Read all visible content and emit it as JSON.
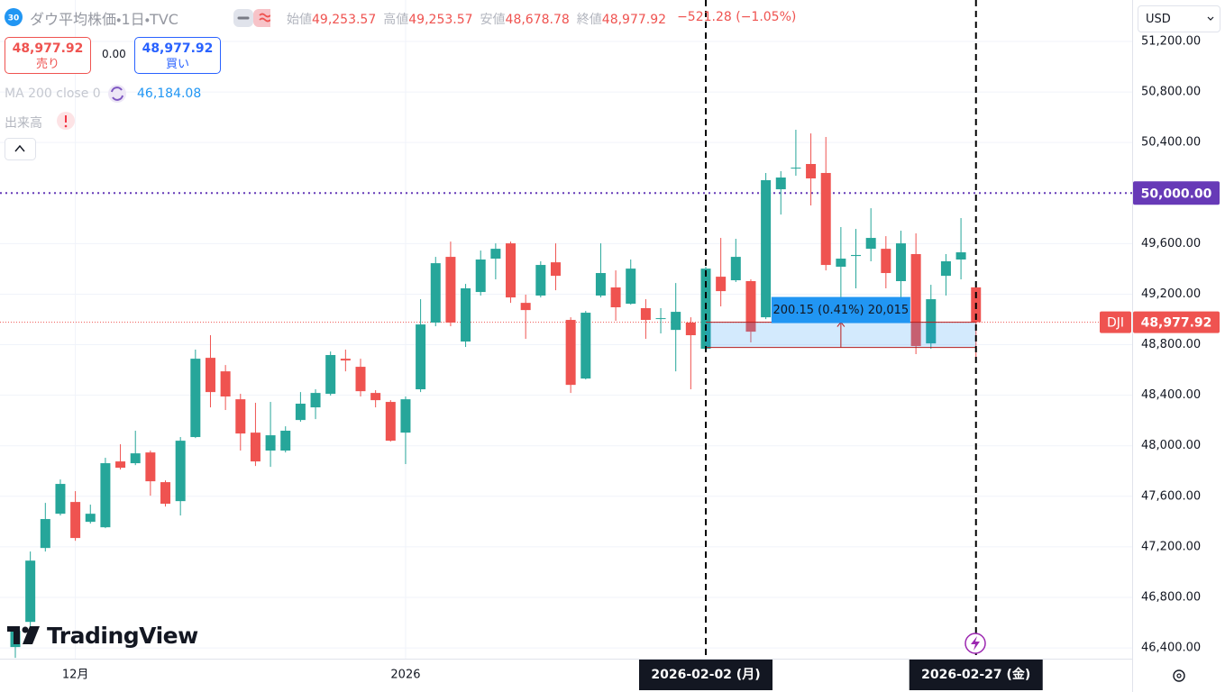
{
  "header": {
    "badge": "30",
    "title": "ダウ平均株価・1日・TVC",
    "ohlc": [
      {
        "label": "始値",
        "value": "49,253.57"
      },
      {
        "label": "高値",
        "value": "49,253.57"
      },
      {
        "label": "安値",
        "value": "48,678.78"
      },
      {
        "label": "終値",
        "value": "48,977.92"
      }
    ],
    "change": "−521.28 (−1.05%)",
    "sell": {
      "price": "48,977.92",
      "label": "売り"
    },
    "spread": "0.00",
    "buy": {
      "price": "48,977.92",
      "label": "買い"
    },
    "indicators": [
      {
        "name": "MA 200 close 0",
        "value": "46,184.08"
      },
      {
        "name": "出来高"
      }
    ],
    "currency": "USD",
    "logo": "TradingView"
  },
  "chart_data": {
    "type": "candlestick",
    "series_name": "DJI",
    "categories": [
      null,
      null,
      null,
      null,
      "12月",
      null,
      null,
      null,
      null,
      null,
      null,
      null,
      null,
      null,
      null,
      null,
      null,
      null,
      null,
      null,
      null,
      null,
      null,
      null,
      null,
      null,
      "2026",
      null,
      null,
      null,
      null,
      null,
      null,
      null,
      null,
      null,
      null,
      null,
      null,
      null,
      null,
      null,
      null,
      null,
      null,
      null,
      "2026-02-02 (月)",
      null,
      null,
      null,
      null,
      null,
      null,
      null,
      null,
      null,
      null,
      null,
      null,
      null,
      null,
      null,
      null,
      null,
      "2026-02-27 (金)"
    ],
    "open": [
      46407,
      46606,
      47191,
      47462,
      47555,
      47398,
      47355,
      47876,
      47862,
      47947,
      47712,
      47562,
      48069,
      48696,
      48589,
      48368,
      48104,
      47962,
      47962,
      48204,
      48304,
      48411,
      48689,
      48625,
      48418,
      48347,
      48104,
      48447,
      48975,
      49495,
      48825,
      49217,
      49481,
      49602,
      49131,
      49189,
      49452,
      48996,
      48532,
      49189,
      49253,
      49124,
      49089,
      49003,
      48917,
      48975,
      48768,
      49338,
      49310,
      49303,
      49017,
      50030,
      50194,
      50230,
      50159,
      49417,
      49502,
      49559,
      49559,
      49303,
      49517,
      48810,
      49345,
      49474,
      49253.57
    ],
    "high": [
      46571,
      47163,
      47548,
      47733,
      47641,
      47534,
      47905,
      48012,
      48119,
      47962,
      47726,
      48069,
      48761,
      48875,
      48639,
      48411,
      48340,
      48347,
      48154,
      48425,
      48447,
      48746,
      48761,
      48689,
      48440,
      48361,
      48390,
      49160,
      49495,
      49616,
      49281,
      49545,
      49602,
      49616,
      49196,
      49460,
      49602,
      49017,
      49067,
      49602,
      49388,
      49474,
      49160,
      49089,
      49288,
      49017,
      49417,
      49645,
      49638,
      49317,
      50159,
      50173,
      50501,
      50472,
      50444,
      49731,
      49716,
      49880,
      49659,
      49702,
      49681,
      49274,
      49517,
      49802,
      49253.57
    ],
    "low": [
      46321,
      46428,
      47163,
      47448,
      47248,
      47384,
      47348,
      47812,
      47847,
      47605,
      47519,
      47448,
      48061,
      48304,
      48283,
      47962,
      47840,
      47833,
      47947,
      48190,
      48211,
      48397,
      48589,
      48390,
      48304,
      48033,
      47855,
      48425,
      48946,
      48946,
      48782,
      49189,
      49317,
      49131,
      48846,
      49174,
      49231,
      48418,
      48525,
      49174,
      48989,
      49117,
      48846,
      48889,
      48589,
      48447,
      48761,
      49103,
      49296,
      48818,
      49003,
      49830,
      50137,
      49902,
      49388,
      49067,
      49246,
      49460,
      49246,
      49160,
      48725,
      48768,
      49189,
      49317,
      48678.78
    ],
    "close": [
      46535,
      47091,
      47420,
      47698,
      47270,
      47462,
      47862,
      47826,
      47940,
      47719,
      47541,
      48040,
      48689,
      48425,
      48390,
      48097,
      47876,
      48083,
      48119,
      48333,
      48418,
      48718,
      48675,
      48432,
      48361,
      48040,
      48368,
      48960,
      49445,
      48975,
      49246,
      49474,
      49559,
      49174,
      49074,
      49431,
      49345,
      48482,
      49053,
      49367,
      49096,
      49402,
      48996,
      49010,
      49060,
      48875,
      49402,
      49224,
      49495,
      48903,
      50102,
      50123,
      50201,
      50116,
      49431,
      49481,
      49510,
      49645,
      49367,
      49602,
      48789,
      49160,
      49460,
      49531,
      48977.92
    ],
    "up_color": "#26a69a",
    "down_color": "#ef5350",
    "ylim": [
      46315,
      51528
    ],
    "yticks": [
      {
        "value": 46400,
        "label": "46,400.00"
      },
      {
        "value": 46800,
        "label": "46,800.00"
      },
      {
        "value": 47200,
        "label": "47,200.00"
      },
      {
        "value": 47600,
        "label": "47,600.00"
      },
      {
        "value": 48000,
        "label": "48,000.00"
      },
      {
        "value": 48400,
        "label": "48,400.00"
      },
      {
        "value": 48800,
        "label": "48,800.00"
      },
      {
        "value": 49200,
        "label": "49,200.00"
      },
      {
        "value": 49600,
        "label": "49,600.00"
      },
      {
        "value": 50000,
        "label": "50,000.00"
      },
      {
        "value": 50400,
        "label": "50,400.00"
      },
      {
        "value": 50800,
        "label": "50,800.00"
      },
      {
        "value": 51200,
        "label": "51,200.00"
      }
    ],
    "grid": true,
    "last_label": "48,977.92",
    "alert": {
      "value": 50000,
      "label": "50,000.00",
      "color": "#673ab7"
    },
    "measure": {
      "from": 48777.77,
      "to": 48977.92,
      "label": "200.15 (0.41%) 20,015"
    }
  }
}
